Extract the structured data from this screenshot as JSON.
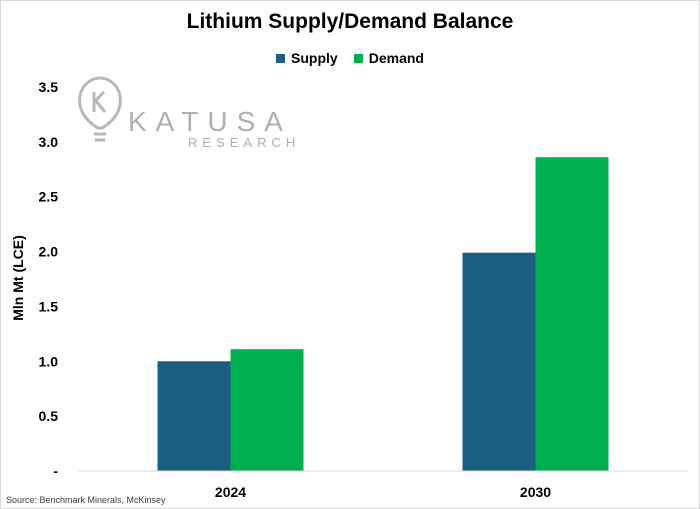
{
  "chart_data": {
    "type": "bar",
    "title": "Lithium Supply/Demand Balance",
    "ylabel": "Mln Mt (LCE)",
    "xlabel": "",
    "categories": [
      "2024",
      "2030"
    ],
    "series": [
      {
        "name": "Supply",
        "color": "#1a5e80",
        "values": [
          1.0,
          1.99
        ]
      },
      {
        "name": "Demand",
        "color": "#00b050",
        "values": [
          1.11,
          2.86
        ]
      }
    ],
    "ylim": [
      0,
      3.5
    ],
    "yticks": [
      0,
      0.5,
      1.0,
      1.5,
      2.0,
      2.5,
      3.0,
      3.5
    ],
    "ytick_labels": [
      "-",
      "0.5",
      "1.0",
      "1.5",
      "2.0",
      "2.5",
      "3.0",
      "3.5"
    ],
    "grid": false,
    "legend_position": "top-center"
  },
  "logo": {
    "text": "KATUSA",
    "subtext": "RESEARCH"
  },
  "source": "Source: Benchmark Minerals, McKinsey"
}
